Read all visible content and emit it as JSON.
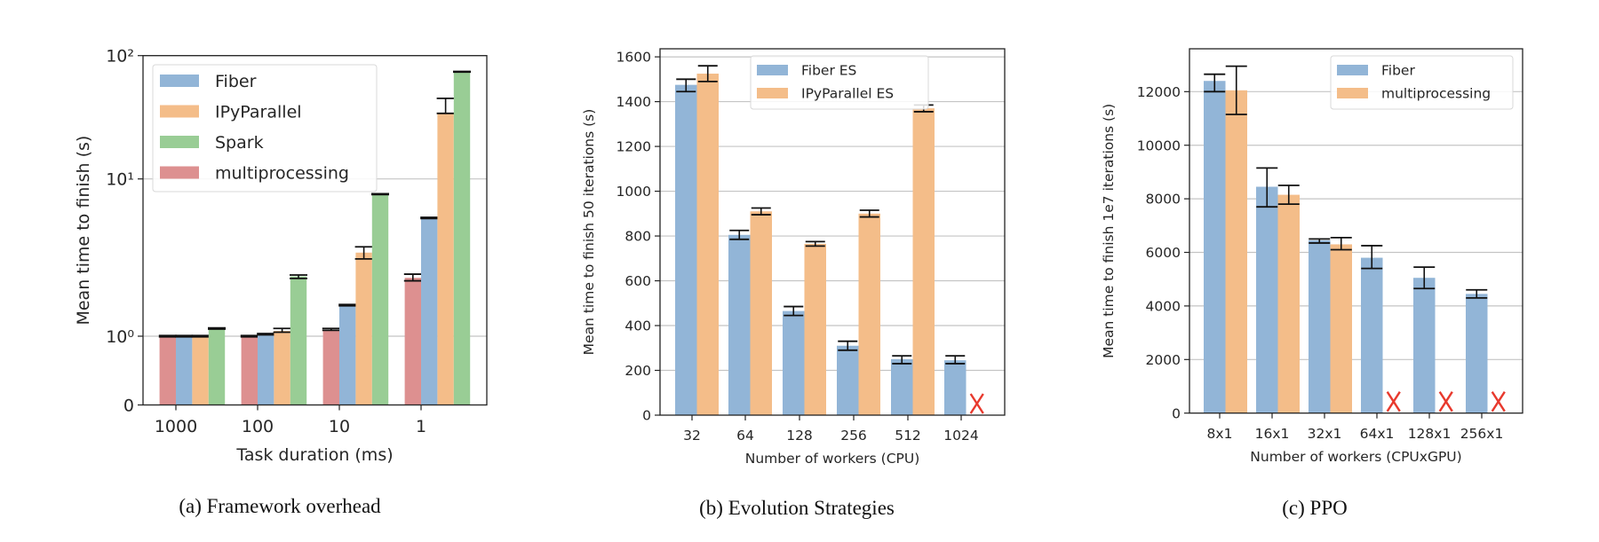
{
  "chart_data": [
    {
      "type": "bar",
      "caption": "(a) Framework overhead",
      "xlabel": "Task duration (ms)",
      "ylabel": "Mean time to finish (s)",
      "yscale": "symlog",
      "ylim": [
        0,
        100
      ],
      "grid": "horizontal",
      "legend_position": "top-left",
      "yticks": [
        {
          "value": 0,
          "label": "0"
        },
        {
          "value": 1,
          "label": "10⁰"
        },
        {
          "value": 10,
          "label": "10¹"
        },
        {
          "value": 100,
          "label": "10²"
        }
      ],
      "categories": [
        "1000",
        "100",
        "10",
        "1"
      ],
      "legend_order": [
        1,
        2,
        3,
        0
      ],
      "series": [
        {
          "name": "multiprocessing",
          "color": "#dd9090",
          "values": [
            1.0,
            1.0,
            1.1,
            2.35
          ],
          "err": [
            [
              0.99,
              1.01
            ],
            [
              0.99,
              1.01
            ],
            [
              1.09,
              1.12
            ],
            [
              2.25,
              2.48
            ]
          ]
        },
        {
          "name": "Fiber",
          "color": "#92b5d7",
          "values": [
            1.0,
            1.03,
            1.57,
            5.65
          ],
          "err": [
            [
              0.99,
              1.01
            ],
            [
              1.02,
              1.04
            ],
            [
              1.56,
              1.59
            ],
            [
              5.6,
              5.7
            ]
          ]
        },
        {
          "name": "IPyParallel",
          "color": "#f4bd89",
          "values": [
            1.0,
            1.08,
            3.4,
            34
          ],
          "err": [
            [
              0.99,
              1.01
            ],
            [
              1.06,
              1.12
            ],
            [
              3.1,
              3.7
            ],
            [
              34,
              45
            ]
          ]
        },
        {
          "name": "Spark",
          "color": "#99cd95",
          "values": [
            1.12,
            2.4,
            8.0,
            74
          ],
          "err": [
            [
              1.11,
              1.13
            ],
            [
              2.33,
              2.45
            ],
            [
              7.95,
              8.05
            ],
            [
              73.5,
              74.5
            ]
          ]
        }
      ]
    },
    {
      "type": "bar",
      "caption": "(b) Evolution Strategies",
      "xlabel": "Number of workers (CPU)",
      "ylabel": "Mean time to finish 50 iterations (s)",
      "yscale": "linear",
      "ylim": [
        0,
        1636
      ],
      "grid": "horizontal",
      "legend_position": "top-right",
      "missing_marker": "X",
      "missing_color": "#e8392d",
      "yticks": [
        {
          "value": 0,
          "label": "0"
        },
        {
          "value": 200,
          "label": "200"
        },
        {
          "value": 400,
          "label": "400"
        },
        {
          "value": 600,
          "label": "600"
        },
        {
          "value": 800,
          "label": "800"
        },
        {
          "value": 1000,
          "label": "1000"
        },
        {
          "value": 1200,
          "label": "1200"
        },
        {
          "value": 1400,
          "label": "1400"
        },
        {
          "value": 1600,
          "label": "1600"
        }
      ],
      "categories": [
        "32",
        "64",
        "128",
        "256",
        "512",
        "1024"
      ],
      "legend_order": [
        0,
        1
      ],
      "series": [
        {
          "name": "Fiber ES",
          "color": "#92b5d7",
          "values": [
            1475,
            805,
            465,
            310,
            250,
            245
          ],
          "err": [
            [
              1445,
              1500
            ],
            [
              785,
              825
            ],
            [
              445,
              485
            ],
            [
              290,
              330
            ],
            [
              230,
              265
            ],
            [
              230,
              265
            ]
          ]
        },
        {
          "name": "IPyParallel ES",
          "color": "#f4bd89",
          "values": [
            1525,
            910,
            765,
            900,
            1370,
            null
          ],
          "err": [
            [
              1490,
              1560
            ],
            [
              895,
              925
            ],
            [
              755,
              775
            ],
            [
              885,
              915
            ],
            [
              1355,
              1385
            ],
            null
          ]
        }
      ]
    },
    {
      "type": "bar",
      "caption": "(c) PPO",
      "xlabel": "Number of workers (CPUxGPU)",
      "ylabel": "Mean time to finish 1e7 iterations (s)",
      "yscale": "linear",
      "ylim": [
        0,
        13600
      ],
      "grid": "horizontal",
      "legend_position": "top-right",
      "missing_marker": "X",
      "missing_color": "#e8392d",
      "yticks": [
        {
          "value": 0,
          "label": "0"
        },
        {
          "value": 2000,
          "label": "2000"
        },
        {
          "value": 4000,
          "label": "4000"
        },
        {
          "value": 6000,
          "label": "6000"
        },
        {
          "value": 8000,
          "label": "8000"
        },
        {
          "value": 10000,
          "label": "10000"
        },
        {
          "value": 12000,
          "label": "12000"
        }
      ],
      "categories": [
        "8x1",
        "16x1",
        "32x1",
        "64x1",
        "128x1",
        "256x1"
      ],
      "legend_order": [
        0,
        1
      ],
      "series": [
        {
          "name": "Fiber",
          "color": "#92b5d7",
          "values": [
            12400,
            8450,
            6450,
            5800,
            5050,
            4450
          ],
          "err": [
            [
              12000,
              12650
            ],
            [
              7700,
              9150
            ],
            [
              6350,
              6500
            ],
            [
              5400,
              6250
            ],
            [
              4650,
              5450
            ],
            [
              4300,
              4600
            ]
          ]
        },
        {
          "name": "multiprocessing",
          "color": "#f4bd89",
          "values": [
            12050,
            8150,
            6300,
            null,
            null,
            null
          ],
          "err": [
            [
              11150,
              12950
            ],
            [
              7800,
              8500
            ],
            [
              6100,
              6550
            ],
            null,
            null,
            null
          ]
        }
      ]
    }
  ]
}
